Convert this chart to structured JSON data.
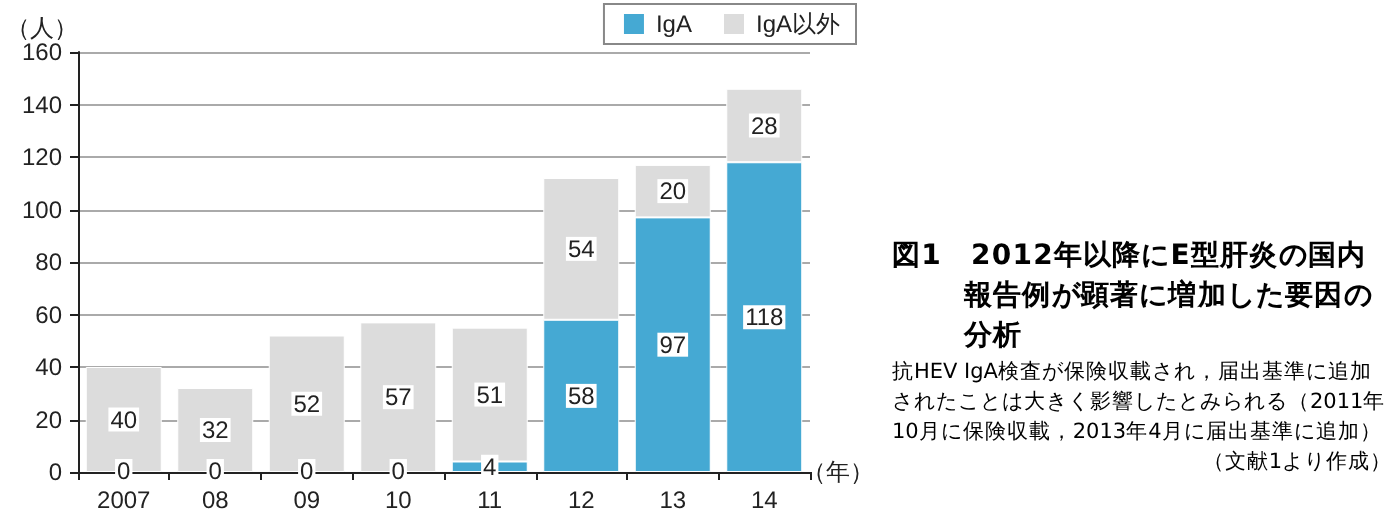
{
  "chart_data": {
    "type": "bar",
    "stacked": true,
    "title": "図1　2012年以降にE型肝炎の国内報告例が顕著に増加した要因の分析",
    "subtitle": "抗HEV IgA検査が保険収載され，届出基準に追加されたことは大きく影響したとみられる（2011年10月に保険収載，2013年4月に届出基準に追加）",
    "annotations": [
      "（文献1より作成）"
    ],
    "xlabel": "（年）",
    "ylabel": "（人）",
    "categories": [
      "2007",
      "08",
      "09",
      "10",
      "11",
      "12",
      "13",
      "14"
    ],
    "series": [
      {
        "name": "IgA",
        "color": "#45a9d3",
        "values": [
          0,
          0,
          0,
          0,
          4,
          58,
          97,
          118
        ]
      },
      {
        "name": "IgA以外",
        "color": "#dcdcdc",
        "values": [
          40,
          32,
          52,
          57,
          51,
          54,
          20,
          28
        ]
      }
    ],
    "ylim": [
      0,
      160
    ],
    "yticks": [
      0,
      20,
      40,
      60,
      80,
      100,
      120,
      140,
      160
    ],
    "grid": "y",
    "legend": "top right",
    "data_labels": true
  }
}
